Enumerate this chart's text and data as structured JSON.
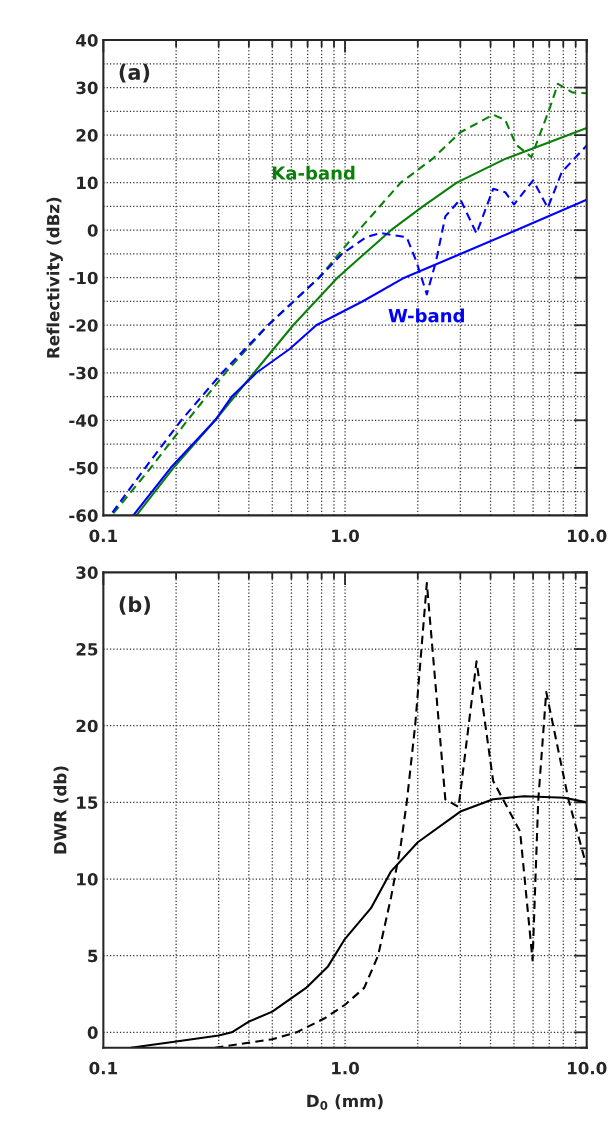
{
  "chart_data": [
    {
      "type": "line",
      "ylabel": "Reflectivity (dBz)",
      "log": "x",
      "grid": true,
      "marker": "none",
      "xlim": [
        0.1,
        10
      ],
      "xticks": [
        {
          "value": 0.1,
          "label": "0.1"
        },
        {
          "value": 1,
          "label": "1.0"
        },
        {
          "value": 10,
          "label": "10.0"
        }
      ],
      "ylim": [
        -60,
        40
      ],
      "yticks": [
        -60,
        -50,
        -40,
        -30,
        -20,
        -10,
        0,
        10,
        20,
        30,
        40
      ],
      "annotations": [
        "(a)"
      ],
      "series": [
        {
          "name": "Ka-band",
          "color": "#0a800a",
          "line_style": "solid",
          "x": [
            0.137,
            0.195,
            0.29,
            0.42,
            0.61,
            0.93,
            1.2,
            1.55,
            2.1,
            2.9,
            4.6,
            7,
            10
          ],
          "values": [
            -60,
            -50,
            -40,
            -30,
            -20,
            -10,
            -5,
            0,
            5,
            10,
            15,
            18.5,
            21.5
          ]
        },
        {
          "name": "W-band",
          "color": "#0000ff",
          "line_style": "solid",
          "x": [
            0.133,
            0.19,
            0.29,
            0.34,
            0.43,
            0.59,
            0.76,
            1.18,
            1.76,
            3.0,
            5.1,
            10
          ],
          "values": [
            -60,
            -50,
            -40,
            -35,
            -30,
            -25,
            -20,
            -15,
            -10,
            -5,
            0,
            6.4
          ]
        },
        {
          "color": "#0a800a",
          "line_style": "dashed",
          "x": [
            0.11,
            0.157,
            0.223,
            0.32,
            0.48,
            0.78,
            1.14,
            1.7,
            2.3,
            3.0,
            4.1,
            4.6,
            5.1,
            5.9,
            7.0,
            7.6,
            8.7,
            10
          ],
          "values": [
            -59.6,
            -50,
            -40,
            -30,
            -20,
            -10,
            0,
            10,
            15,
            20.6,
            24.3,
            23.2,
            18,
            15.4,
            25.4,
            30.8,
            29,
            28.8
          ]
        },
        {
          "color": "#0000ff",
          "line_style": "dashed",
          "x": [
            0.109,
            0.149,
            0.21,
            0.31,
            0.48,
            0.78,
            0.97,
            1.22,
            1.4,
            1.8,
            1.97,
            2.18,
            2.38,
            2.6,
            3.0,
            3.5,
            4.1,
            4.6,
            5.0,
            6.0,
            6.9,
            7.9,
            10
          ],
          "values": [
            -59.4,
            -50,
            -40,
            -30,
            -20,
            -10,
            -5,
            -1.5,
            -0.6,
            -1.5,
            -6.5,
            -13.5,
            -6.5,
            2.9,
            6.5,
            -0.7,
            8.7,
            8,
            5.4,
            10.5,
            4.7,
            12.3,
            17.8
          ]
        }
      ]
    },
    {
      "type": "line",
      "xlabel": "D$_{0}$ (mm)",
      "ylabel": "DWR (db)",
      "log": "x",
      "grid": true,
      "marker": "none",
      "xlim": [
        0.1,
        10
      ],
      "xticks": [
        {
          "value": 0.1,
          "label": "0.1"
        },
        {
          "value": 1,
          "label": "1.0"
        },
        {
          "value": 10,
          "label": "10.0"
        }
      ],
      "ylim": [
        -1,
        30
      ],
      "yticks": [
        0,
        5,
        10,
        15,
        20,
        25,
        30
      ],
      "annotations": [
        "(b)"
      ],
      "series": [
        {
          "color": "#000000",
          "line_style": "solid",
          "x": [
            0.13,
            0.2,
            0.3,
            0.34,
            0.4,
            0.5,
            0.69,
            0.85,
            1.0,
            1.28,
            1.55,
            2.0,
            3.0,
            4.1,
            5.5,
            8.1,
            10
          ],
          "values": [
            -1,
            -0.6,
            -0.2,
            0,
            0.7,
            1.35,
            2.9,
            4.3,
            6.1,
            8.1,
            10.5,
            12.4,
            14.4,
            15.2,
            15.4,
            15.3,
            15.0
          ]
        },
        {
          "color": "#000000",
          "line_style": "dashed",
          "x": [
            0.29,
            0.5,
            0.63,
            0.82,
            1.0,
            1.2,
            1.37,
            1.55,
            1.7,
            1.8,
            1.95,
            2.18,
            2.6,
            2.95,
            3.5,
            4.1,
            4.4,
            5.3,
            5.97,
            6.3,
            6.8,
            8.4,
            10
          ],
          "values": [
            -1,
            -0.45,
            0,
            0.9,
            1.8,
            2.9,
            5,
            8.8,
            12.2,
            15,
            20,
            29.3,
            15.2,
            14.7,
            24.2,
            16.4,
            15.5,
            13.1,
            4.7,
            15.1,
            22.2,
            15.2,
            10.8
          ]
        }
      ]
    }
  ]
}
